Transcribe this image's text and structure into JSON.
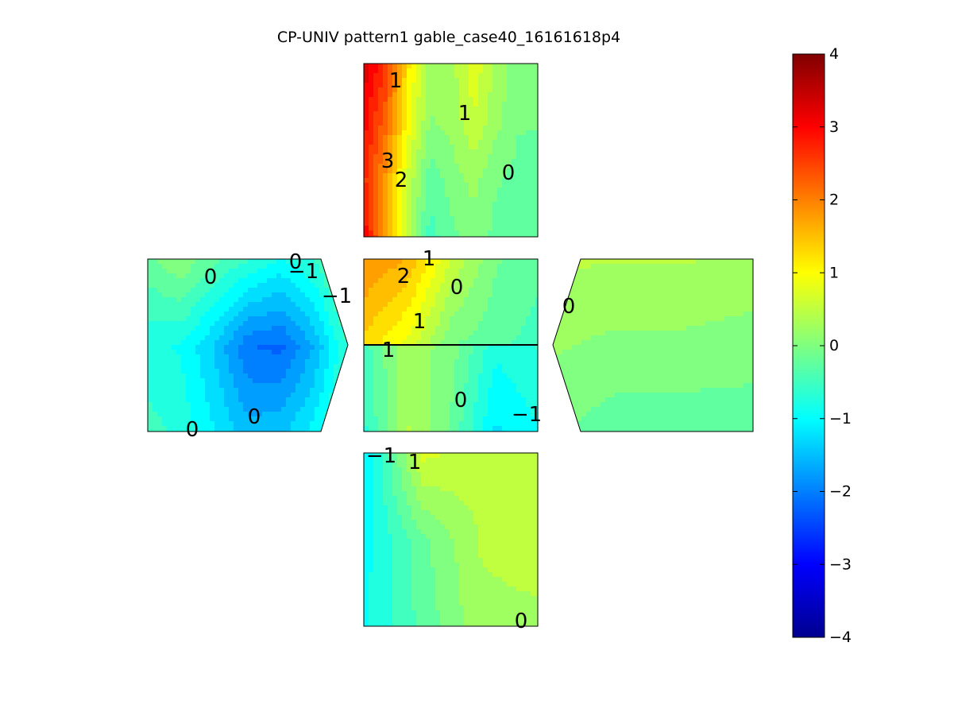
{
  "title": "CP-UNIV pattern1 gable_case40_16161618p4",
  "chart_data": {
    "type": "heatmap",
    "title": "CP-UNIV pattern1 gable_case40_16161618p4",
    "colormap": "jet",
    "clim": [
      -4,
      4
    ],
    "colorbar_ticks": [
      "4",
      "3",
      "2",
      "1",
      "0",
      "−1",
      "−2",
      "−3",
      "−4"
    ],
    "panels": [
      {
        "name": "top-roof",
        "values": [
          [
            3.3,
            2.6,
            1.2,
            0.2,
            0.3,
            0.8,
            0.3,
            0.0,
            -0.1
          ],
          [
            3.0,
            2.2,
            1.0,
            0.1,
            0.2,
            0.6,
            0.2,
            -0.1,
            -0.1
          ],
          [
            2.7,
            1.8,
            0.6,
            -0.3,
            0.0,
            0.2,
            -0.1,
            -0.2,
            -0.3
          ],
          [
            3.1,
            1.8,
            0.5,
            -0.5,
            -0.2,
            0.0,
            -0.2,
            -0.3,
            -0.3
          ]
        ]
      },
      {
        "name": "left-gable",
        "values": [
          [
            -0.2,
            0.1,
            -0.3,
            -0.6,
            -0.9,
            -0.6,
            0.1
          ],
          [
            -0.8,
            -0.9,
            -1.4,
            -2.1,
            -2.2,
            -1.6,
            -0.6
          ],
          [
            -0.5,
            -0.7,
            -1.1,
            -1.5,
            -1.4,
            -1.0,
            -0.3
          ]
        ]
      },
      {
        "name": "center-upper",
        "values": [
          [
            1.9,
            1.6,
            0.6,
            -0.1,
            -0.3
          ],
          [
            1.3,
            0.8,
            -0.1,
            -0.3,
            -0.5
          ]
        ]
      },
      {
        "name": "center-lower",
        "values": [
          [
            -0.5,
            0.3,
            0.0,
            -0.8,
            -0.6
          ],
          [
            -0.7,
            0.4,
            -0.2,
            -1.2,
            -0.9
          ]
        ]
      },
      {
        "name": "right-gable",
        "values": [
          [
            0.4,
            0.4,
            0.4,
            0.3
          ],
          [
            -0.1,
            -0.3,
            -0.3,
            -0.3
          ]
        ]
      },
      {
        "name": "bottom-wall",
        "values": [
          [
            -1.2,
            0.7,
            0.5,
            0.4
          ],
          [
            -1.0,
            -0.2,
            0.4,
            0.5
          ],
          [
            -0.9,
            -0.3,
            0.3,
            0.3
          ]
        ]
      }
    ],
    "contour_labels": [
      {
        "panel": "top-roof",
        "text": "1"
      },
      {
        "panel": "top-roof",
        "text": "1"
      },
      {
        "panel": "top-roof",
        "text": "3"
      },
      {
        "panel": "top-roof",
        "text": "2"
      },
      {
        "panel": "top-roof",
        "text": "0"
      },
      {
        "panel": "left-gable",
        "text": "0"
      },
      {
        "panel": "left-gable",
        "text": "0"
      },
      {
        "panel": "left-gable",
        "text": "−1"
      },
      {
        "panel": "left-gable",
        "text": "−1"
      },
      {
        "panel": "left-gable",
        "text": "0"
      },
      {
        "panel": "left-gable",
        "text": "0"
      },
      {
        "panel": "center-upper",
        "text": "1"
      },
      {
        "panel": "center-upper",
        "text": "2"
      },
      {
        "panel": "center-upper",
        "text": "0"
      },
      {
        "panel": "center-upper",
        "text": "1"
      },
      {
        "panel": "center-lower",
        "text": "1"
      },
      {
        "panel": "center-lower",
        "text": "0"
      },
      {
        "panel": "center-lower",
        "text": "−1"
      },
      {
        "panel": "right-gable",
        "text": "0"
      },
      {
        "panel": "bottom-wall",
        "text": "−1"
      },
      {
        "panel": "bottom-wall",
        "text": "1"
      },
      {
        "panel": "bottom-wall",
        "text": "0"
      }
    ]
  }
}
